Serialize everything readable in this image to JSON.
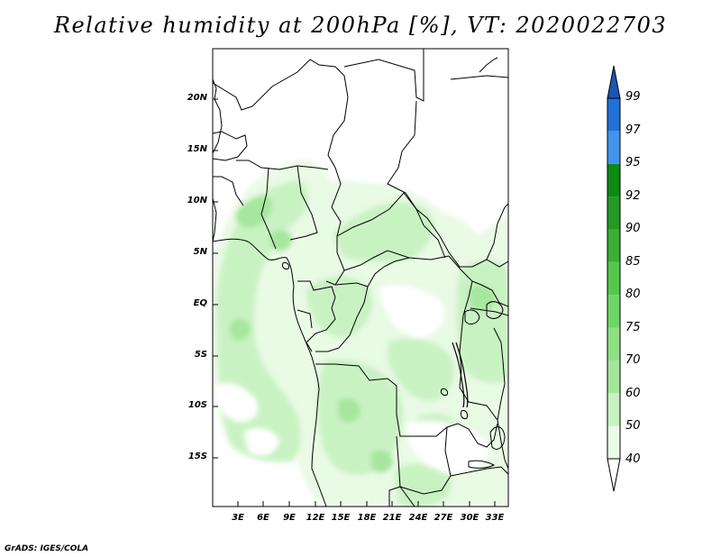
{
  "title": "Relative humidity at 200hPa [%], VT: 2020022703",
  "credit": "GrADS: IGES/COLA",
  "map": {
    "lat_labels": [
      "20N",
      "15N",
      "10N",
      "5N",
      "EQ",
      "5S",
      "10S",
      "15S"
    ],
    "lon_labels": [
      "3E",
      "6E",
      "9E",
      "12E",
      "15E",
      "18E",
      "21E",
      "24E",
      "27E",
      "30E",
      "33E"
    ]
  },
  "colorbar": {
    "levels": [
      "40",
      "50",
      "60",
      "70",
      "75",
      "80",
      "85",
      "90",
      "92",
      "95",
      "97",
      "99"
    ],
    "colors": [
      "#ffffff",
      "#ebfbe8",
      "#c8f1c2",
      "#a4e59c",
      "#8ee083",
      "#6fd566",
      "#55c74d",
      "#3aae36",
      "#239a24",
      "#0d8a12",
      "#4094ea",
      "#2170d6",
      "#1656b5"
    ]
  }
}
